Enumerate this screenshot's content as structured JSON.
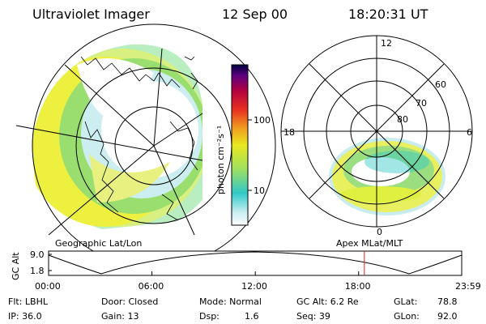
{
  "header": {
    "title": "Ultraviolet Imager",
    "date": "12 Sep 00",
    "time": "18:20:31 UT"
  },
  "colorbar": {
    "label": "photon cm⁻²s⁻¹",
    "ticks": [
      "100",
      "10"
    ]
  },
  "geo_map": {
    "caption": "Geographic Lat/Lon"
  },
  "polar_map": {
    "caption": "Apex  MLat/MLT",
    "mlt_labels": {
      "top": "12",
      "left": "18",
      "right": "6",
      "bottom": "0"
    },
    "lat_labels": [
      "60",
      "70",
      "80"
    ]
  },
  "altitude_plot": {
    "ylabel": "GC Alt",
    "yticks": [
      "9.0",
      "1.8"
    ],
    "xticks": [
      "00:00",
      "06:00",
      "12:00",
      "18:00",
      "23:59"
    ],
    "marker_time": "18:20",
    "marker_color": "#e02020"
  },
  "status": {
    "row1": [
      {
        "label": "Flt: LBHL"
      },
      {
        "label": "Door: Closed"
      },
      {
        "label": "Mode: Normal"
      },
      {
        "label": "GC Alt: 6.2 Re"
      },
      {
        "label": "GLat:",
        "value": "78.8"
      }
    ],
    "row2": [
      {
        "label": "IP: 36.0"
      },
      {
        "label": "Gain: 13"
      },
      {
        "label": "Dsp:",
        "value": "1.6"
      },
      {
        "label": "Seq: 39"
      },
      {
        "label": "GLon:",
        "value": "92.0"
      }
    ]
  },
  "colors": {
    "bar_stops": [
      "#ffffff",
      "#8fe0e8",
      "#30c8c8",
      "#a0e060",
      "#e8e820",
      "#f0a020",
      "#e83020",
      "#b00040",
      "#600080",
      "#000040"
    ]
  }
}
